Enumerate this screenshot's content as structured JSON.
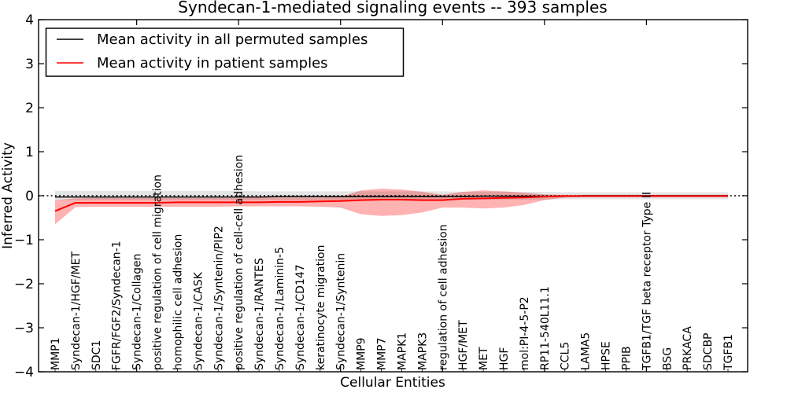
{
  "figure": {
    "title": "Syndecan-1-mediated signaling events -- 393 samples",
    "xlabel": "Cellular Entities",
    "ylabel": "Inferred Activity",
    "legend": {
      "entries": [
        {
          "label": "Mean activity in all permuted samples",
          "color": "#000000"
        },
        {
          "label": "Mean activity in patient samples",
          "color": "#ff0000"
        }
      ]
    },
    "ytick_labels": [
      "4",
      "3",
      "2",
      "1",
      "0",
      "−1",
      "−2",
      "−3",
      "−4"
    ]
  },
  "colors": {
    "background": "#ffffff",
    "frame": "#000000",
    "permuted_line": "#000000",
    "patient_line": "#ff0000",
    "permuted_band": "rgba(0,0,0,0.10)",
    "patient_band": "rgba(255,0,0,0.30)",
    "zero_line": "#000000"
  },
  "chart_data": {
    "type": "line",
    "title": "Syndecan-1-mediated signaling events -- 393 samples",
    "xlabel": "Cellular Entities",
    "ylabel": "Inferred Activity",
    "ylim": [
      -4,
      4
    ],
    "yticks": [
      4,
      3,
      2,
      1,
      0,
      -1,
      -2,
      -3,
      -4
    ],
    "xticks_major_index": [
      4,
      9,
      14,
      19,
      24,
      29
    ],
    "grid": false,
    "legend_position": "upper left",
    "zero_reference_line": {
      "y": 0,
      "style": "dotted",
      "color": "#000000"
    },
    "categories": [
      "MMP1",
      "Syndecan-1/HGF/MET",
      "SDC1",
      "FGFR/FGF2/Syndecan-1",
      "Syndecan-1/Collagen",
      "positive regulation of cell migration",
      "homophilic cell adhesion",
      "Syndecan-1/CASK",
      "Syndecan-1/Syntenin/PIP2",
      "positive regulation of cell-cell adhesion",
      "Syndecan-1/RANTES",
      "Syndecan-1/Laminin-5",
      "Syndecan-1/CD147",
      "keratinocyte migration",
      "Syndecan-1/Syntenin",
      "MMP9",
      "MMP7",
      "MAPK1",
      "MAPK3",
      "regulation of cell adhesion",
      "HGF/MET",
      "MET",
      "HGF",
      "mol:PI-4-5-P2",
      "RP11-540L11.1",
      "CCL5",
      "LAMA5",
      "HPSE",
      "PPIB",
      "TGFB1/TGF beta receptor Type II",
      "BSG",
      "PRKACA",
      "SDCBP",
      "TGFB1"
    ],
    "series": [
      {
        "name": "Mean activity in all permuted samples",
        "color": "#000000",
        "band_color": "rgba(0,0,0,0.10)",
        "values": [
          -0.03,
          -0.03,
          -0.03,
          -0.03,
          -0.03,
          -0.03,
          -0.03,
          -0.03,
          -0.03,
          -0.03,
          -0.03,
          -0.02,
          -0.02,
          -0.02,
          -0.02,
          -0.02,
          -0.02,
          -0.02,
          -0.02,
          -0.02,
          -0.02,
          -0.01,
          -0.01,
          -0.01,
          -0.01,
          -0.01,
          0,
          0,
          0,
          0,
          0,
          0,
          0,
          0
        ],
        "band_lo": [
          -0.1,
          -0.1,
          -0.1,
          -0.1,
          -0.1,
          -0.1,
          -0.1,
          -0.1,
          -0.1,
          -0.1,
          -0.1,
          -0.1,
          -0.1,
          -0.1,
          -0.1,
          -0.1,
          -0.1,
          -0.1,
          -0.1,
          -0.1,
          -0.09,
          -0.09,
          -0.09,
          -0.09,
          -0.09,
          -0.08,
          -0.08,
          -0.08,
          -0.08,
          -0.08,
          -0.08,
          -0.08,
          -0.08,
          -0.08
        ],
        "band_hi": [
          0.11,
          0.11,
          0.11,
          0.11,
          0.11,
          0.11,
          0.11,
          0.11,
          0.11,
          0.11,
          0.1,
          0.1,
          0.1,
          0.1,
          0.1,
          0.1,
          0.1,
          0.1,
          0.1,
          0.1,
          0.09,
          0.09,
          0.09,
          0.09,
          0.09,
          0.08,
          0.08,
          0.08,
          0.08,
          0.08,
          0.08,
          0.08,
          0.08,
          0.08
        ]
      },
      {
        "name": "Mean activity in patient samples",
        "color": "#ff0000",
        "band_color": "rgba(255,0,0,0.30)",
        "values": [
          -0.35,
          -0.16,
          -0.16,
          -0.16,
          -0.16,
          -0.16,
          -0.15,
          -0.15,
          -0.15,
          -0.15,
          -0.15,
          -0.14,
          -0.14,
          -0.13,
          -0.12,
          -0.1,
          -0.09,
          -0.09,
          -0.1,
          -0.1,
          -0.07,
          -0.06,
          -0.05,
          -0.04,
          -0.02,
          -0.01,
          -0.01,
          -0.01,
          -0.01,
          -0.01,
          -0.01,
          -0.01,
          -0.01,
          -0.01
        ],
        "band_lo": [
          -0.65,
          -0.26,
          -0.25,
          -0.25,
          -0.25,
          -0.25,
          -0.25,
          -0.25,
          -0.25,
          -0.24,
          -0.24,
          -0.24,
          -0.24,
          -0.25,
          -0.27,
          -0.42,
          -0.46,
          -0.44,
          -0.38,
          -0.27,
          -0.27,
          -0.29,
          -0.27,
          -0.21,
          -0.1,
          -0.04,
          -0.03,
          -0.03,
          -0.03,
          -0.03,
          -0.03,
          -0.03,
          -0.03,
          -0.03
        ],
        "band_hi": [
          -0.1,
          -0.06,
          -0.05,
          -0.05,
          -0.05,
          -0.05,
          -0.05,
          -0.05,
          -0.05,
          -0.05,
          -0.04,
          -0.04,
          -0.04,
          -0.04,
          -0.03,
          0.12,
          0.16,
          0.14,
          0.09,
          0.02,
          0.09,
          0.12,
          0.1,
          0.07,
          0.03,
          0.02,
          0.02,
          0.02,
          0.02,
          0.02,
          0.02,
          0.02,
          0.02,
          0.02
        ]
      }
    ]
  }
}
